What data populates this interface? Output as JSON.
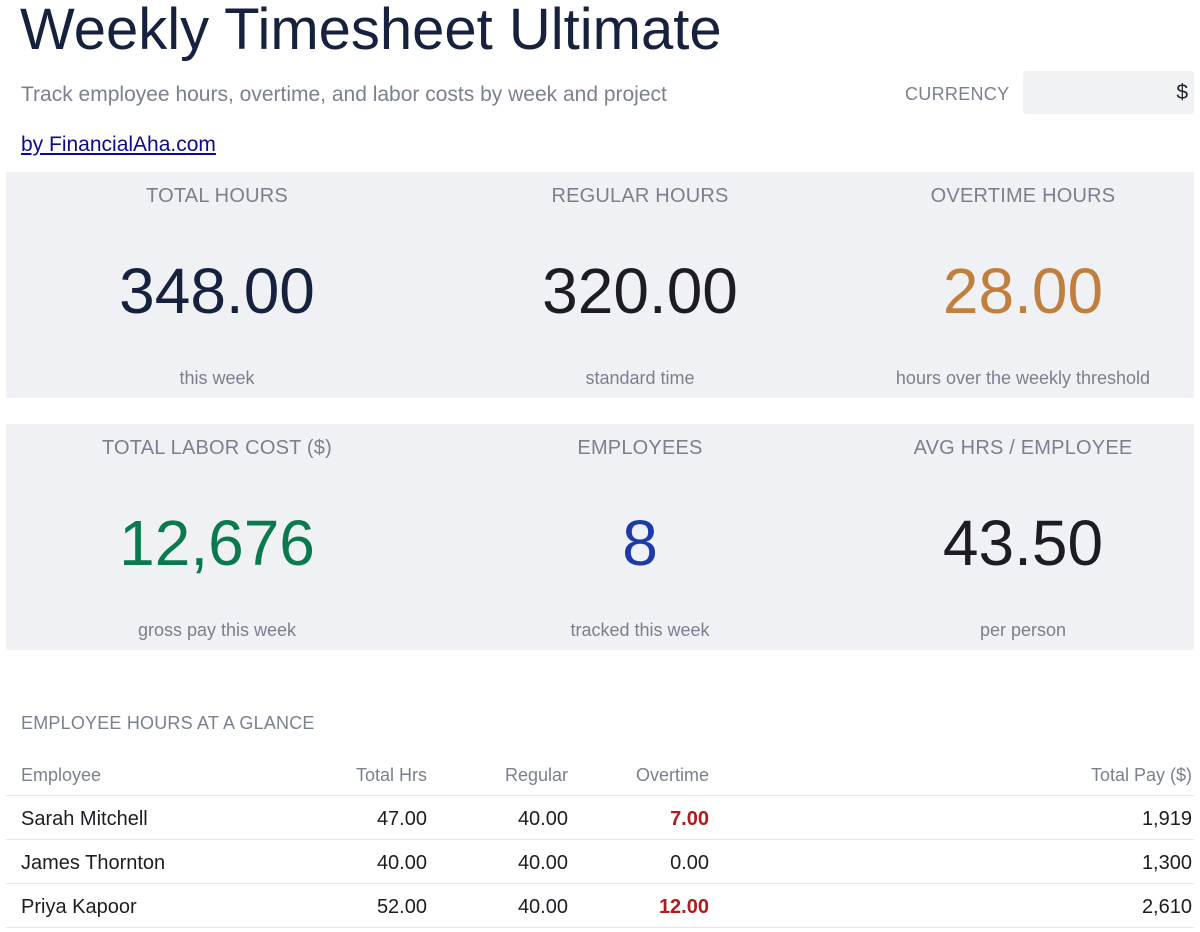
{
  "header": {
    "title": "Weekly Timesheet Ultimate",
    "subtitle": "Track employee hours, overtime, and labor costs by week and project",
    "byline": "by FinancialAha.com",
    "currency_label": "CURRENCY",
    "currency_value": "$"
  },
  "kpis": {
    "total_hours": {
      "label": "TOTAL HOURS",
      "value": "348.00",
      "sub": "this week"
    },
    "regular_hours": {
      "label": "REGULAR HOURS",
      "value": "320.00",
      "sub": "standard time"
    },
    "overtime_hours": {
      "label": "OVERTIME HOURS",
      "value": "28.00",
      "sub": "hours over the weekly threshold"
    },
    "total_labor_cost": {
      "label": "TOTAL LABOR COST ($)",
      "value": "12,676",
      "sub": "gross pay this week"
    },
    "employees": {
      "label": "EMPLOYEES",
      "value": "8",
      "sub": "tracked this week"
    },
    "avg_hours": {
      "label": "AVG HRS / EMPLOYEE",
      "value": "43.50",
      "sub": "per person"
    }
  },
  "colors": {
    "navy": "#16213e",
    "overtime_orange": "#c07f3c",
    "cost_green": "#0a7a4e",
    "employees_blue": "#1d3aa8",
    "overtime_red": "#b31b1b",
    "kpi_background": "#eff1f5"
  },
  "glance": {
    "section_title": "EMPLOYEE HOURS AT A GLANCE",
    "columns": [
      "Employee",
      "Total Hrs",
      "Regular",
      "Overtime",
      "Total Pay ($)"
    ],
    "rows": [
      {
        "employee": "Sarah Mitchell",
        "total": "47.00",
        "regular": "40.00",
        "overtime": "7.00",
        "pay": "1,919"
      },
      {
        "employee": "James Thornton",
        "total": "40.00",
        "regular": "40.00",
        "overtime": "0.00",
        "pay": "1,300"
      },
      {
        "employee": "Priya Kapoor",
        "total": "52.00",
        "regular": "40.00",
        "overtime": "12.00",
        "pay": "2,610"
      }
    ]
  }
}
